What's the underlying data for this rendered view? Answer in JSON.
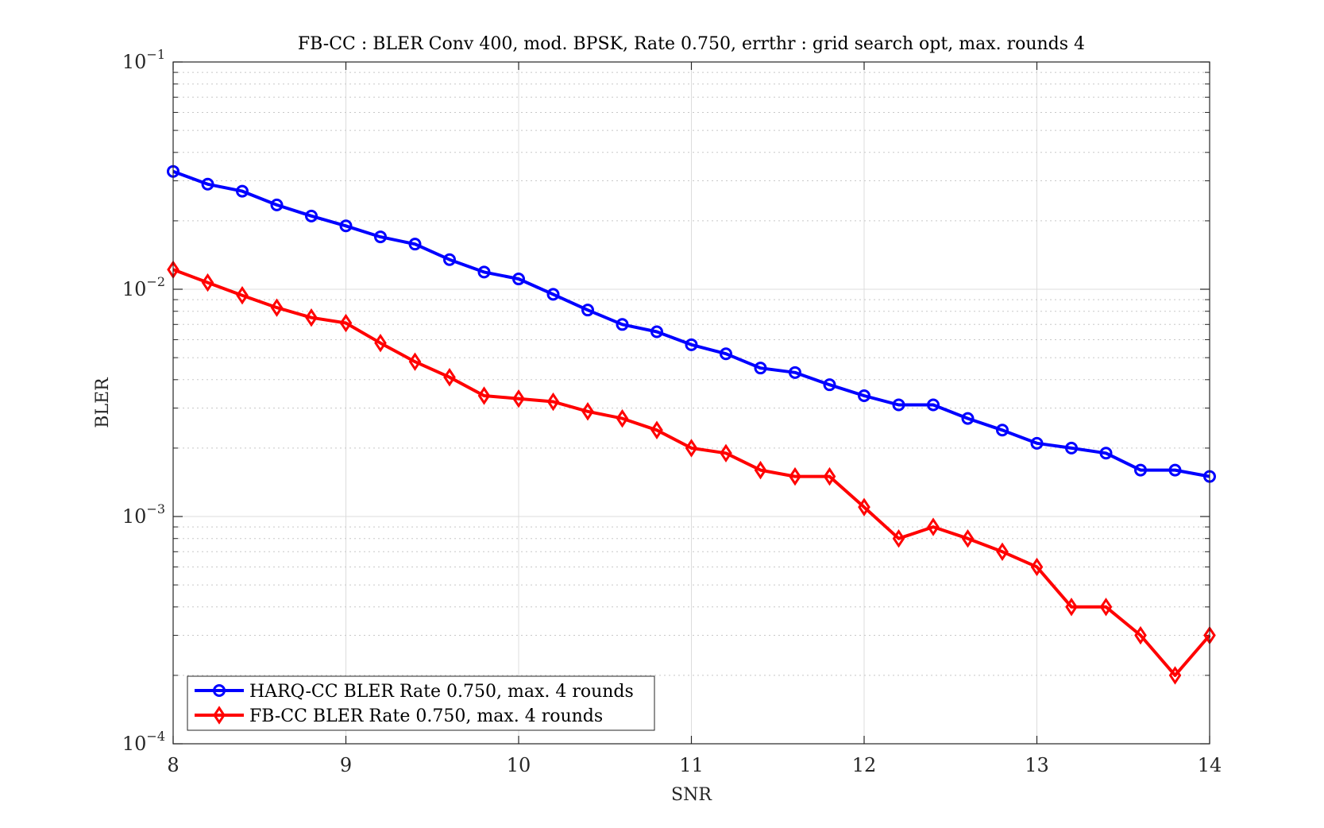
{
  "chart_data": {
    "type": "line",
    "title": "FB-CC : BLER Conv 400, mod. BPSK, Rate 0.750, errthr : grid search opt, max. rounds 4",
    "xlabel": "SNR",
    "ylabel": "BLER",
    "xlim": [
      8,
      14
    ],
    "ylim": [
      0.0001,
      0.1
    ],
    "yscale": "log",
    "grid": true,
    "minor_grid": true,
    "legend_position": "bottom-left",
    "x_ticks": [
      8,
      9,
      10,
      11,
      12,
      13,
      14
    ],
    "y_ticks": [
      {
        "value": 0.1,
        "mantissa": "10",
        "exponent": "−1"
      },
      {
        "value": 0.01,
        "mantissa": "10",
        "exponent": "−2"
      },
      {
        "value": 0.001,
        "mantissa": "10",
        "exponent": "−3"
      },
      {
        "value": 0.0001,
        "mantissa": "10",
        "exponent": "−4"
      }
    ],
    "x": [
      8.0,
      8.2,
      8.4,
      8.6,
      8.8,
      9.0,
      9.2,
      9.4,
      9.6,
      9.8,
      10.0,
      10.2,
      10.4,
      10.6,
      10.8,
      11.0,
      11.2,
      11.4,
      11.6,
      11.8,
      12.0,
      12.2,
      12.4,
      12.6,
      12.8,
      13.0,
      13.2,
      13.4,
      13.6,
      13.8,
      14.0
    ],
    "series": [
      {
        "name": "HARQ-CC BLER Rate 0.750, max. 4 rounds",
        "color": "#0000ff",
        "marker": "circle",
        "values": [
          0.033,
          0.029,
          0.027,
          0.0235,
          0.021,
          0.019,
          0.017,
          0.0158,
          0.0135,
          0.0119,
          0.0111,
          0.0095,
          0.0081,
          0.007,
          0.0065,
          0.0057,
          0.0052,
          0.0045,
          0.0043,
          0.0038,
          0.0034,
          0.0031,
          0.0031,
          0.0027,
          0.0024,
          0.0021,
          0.002,
          0.0019,
          0.0016,
          0.0016,
          0.0015
        ]
      },
      {
        "name": "FB-CC BLER Rate 0.750, max. 4 rounds",
        "color": "#ff0000",
        "marker": "diamond",
        "values": [
          0.0122,
          0.0107,
          0.0094,
          0.0083,
          0.0075,
          0.0071,
          0.0058,
          0.0048,
          0.0041,
          0.0034,
          0.0033,
          0.0032,
          0.0029,
          0.0027,
          0.0024,
          0.002,
          0.0019,
          0.0016,
          0.0015,
          0.0015,
          0.0011,
          0.0008,
          0.0009,
          0.0008,
          0.0007,
          0.0006,
          0.0004,
          0.0004,
          0.0003,
          0.0002,
          0.0003
        ]
      }
    ]
  }
}
